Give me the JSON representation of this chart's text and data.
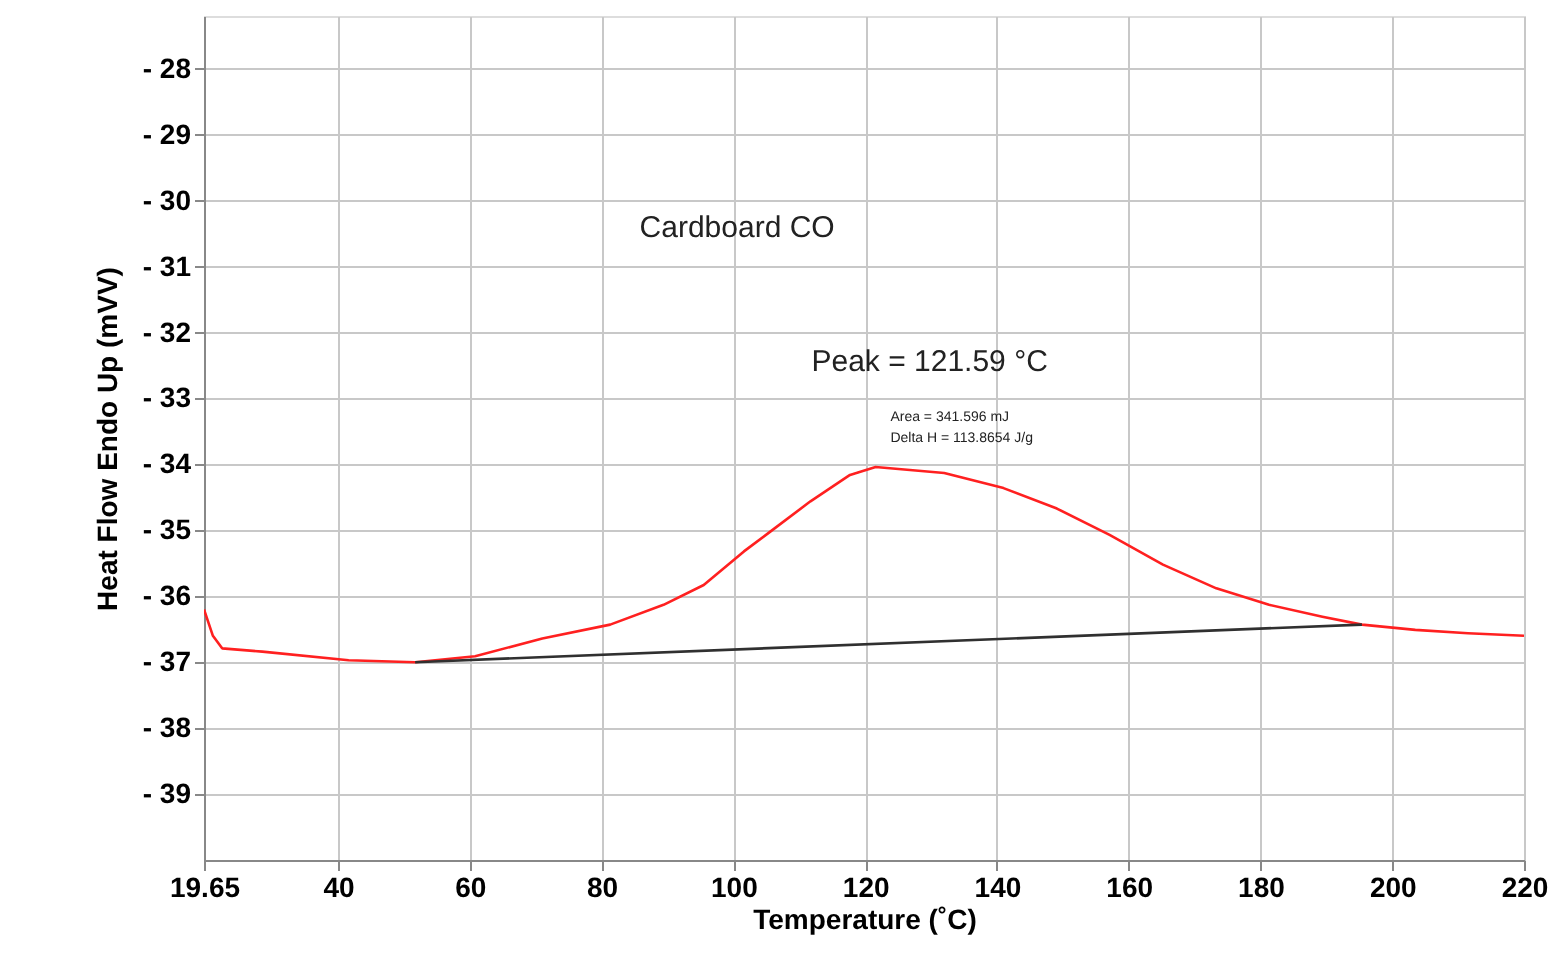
{
  "chart_data": {
    "type": "line",
    "title": "Cardboard CO",
    "xlabel": "Temperature (˚C)",
    "ylabel": "Heat Flow Endo Up (mVV)",
    "series": [
      {
        "color": "#ff2020",
        "x": [
          19.65,
          21,
          22.4,
          28.5,
          41.6,
          51.7,
          60.8,
          71,
          81.3,
          89.4,
          95.5,
          101.6,
          105.6,
          111.7,
          117.7,
          121.59,
          132,
          141,
          149.1,
          157.1,
          165.2,
          173.3,
          181.3,
          189.4,
          195.4,
          203.5,
          211.5,
          220
        ],
        "values": [
          -36.2,
          -36.6,
          -36.79,
          -36.84,
          -36.97,
          -37.0,
          -36.91,
          -36.64,
          -36.43,
          -36.13,
          -35.83,
          -35.32,
          -35.02,
          -34.56,
          -34.16,
          -34.04,
          -34.13,
          -34.36,
          -34.67,
          -35.07,
          -35.52,
          -35.88,
          -36.13,
          -36.31,
          -36.43,
          -36.51,
          -36.56,
          -36.6
        ]
      },
      {
        "color": "#303030",
        "x": [
          51.7,
          195.4
        ],
        "values": [
          -37.0,
          -36.43
        ]
      }
    ],
    "xlim": [
      19.65,
      220
    ],
    "xticks": [
      19.65,
      40,
      60,
      80,
      100,
      120,
      140,
      160,
      180,
      200,
      220
    ],
    "ylim": [
      -40,
      -27.2
    ],
    "yticks": [
      {
        "value": -28,
        "label": "- 28"
      },
      {
        "value": -29,
        "label": "- 29"
      },
      {
        "value": -30,
        "label": "- 30"
      },
      {
        "value": -31,
        "label": "- 31"
      },
      {
        "value": -32,
        "label": "- 32"
      },
      {
        "value": -33,
        "label": "- 33"
      },
      {
        "value": -34,
        "label": "- 34"
      },
      {
        "value": -35,
        "label": "- 35"
      },
      {
        "value": -36,
        "label": "- 36"
      },
      {
        "value": -37,
        "label": "- 37"
      },
      {
        "value": -38,
        "label": "- 38"
      },
      {
        "value": -39,
        "label": "- 39"
      }
    ],
    "annotations": [
      {
        "text": "Peak = 121.59 °C",
        "x": 121.59,
        "y": -34.04
      },
      "Area = 341.596 mJ",
      "Delta H = 113.8654 J/g"
    ],
    "grid": true,
    "marker": "none",
    "line_style": "solid"
  }
}
